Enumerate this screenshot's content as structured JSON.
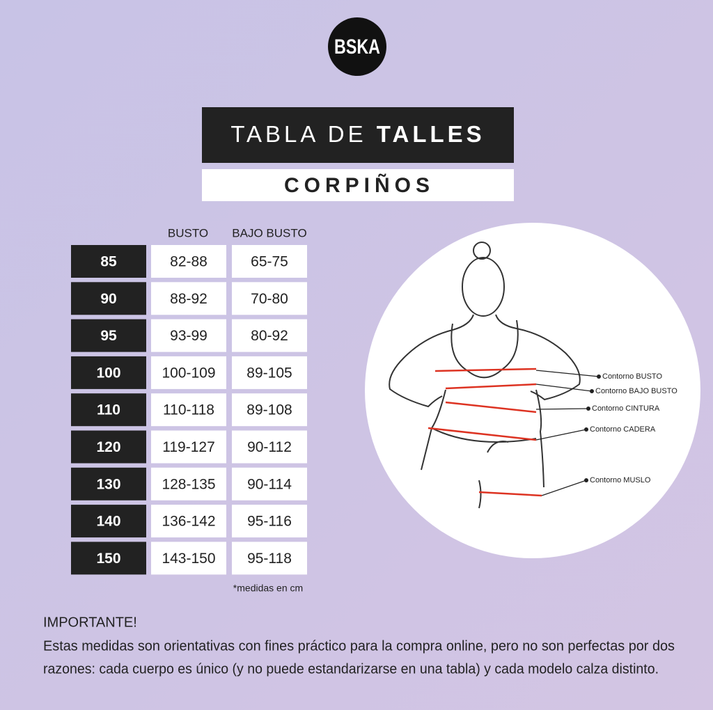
{
  "logo": "BSKA",
  "header": {
    "title_light": "TABLA DE",
    "title_bold": "TALLES",
    "subtitle": "CORPIÑOS"
  },
  "table": {
    "columns": [
      "BUSTO",
      "BAJO BUSTO"
    ],
    "rows": [
      [
        "85",
        "82-88",
        "65-75"
      ],
      [
        "90",
        "88-92",
        "70-80"
      ],
      [
        "95",
        "93-99",
        "80-92"
      ],
      [
        "100",
        "100-109",
        "89-105"
      ],
      [
        "110",
        "110-118",
        "89-108"
      ],
      [
        "120",
        "119-127",
        "90-112"
      ],
      [
        "130",
        "128-135",
        "90-114"
      ],
      [
        "140",
        "136-142",
        "95-116"
      ],
      [
        "150",
        "143-150",
        "95-118"
      ]
    ],
    "note": "*medidas en cm"
  },
  "diagram": {
    "labels": [
      "Contorno BUSTO",
      "Contorno BAJO BUSTO",
      "Contorno CINTURA",
      "Contorno CADERA",
      "Contorno MUSLO"
    ]
  },
  "important": {
    "title": "IMPORTANTE!",
    "lines": [
      "Estas medidas son orientativas con fines práctico para la compra online, pero no son perfectas por dos",
      "razones: cada cuerpo es único (y no puede estandarizarse en una tabla) y cada modelo calza distinto."
    ]
  }
}
